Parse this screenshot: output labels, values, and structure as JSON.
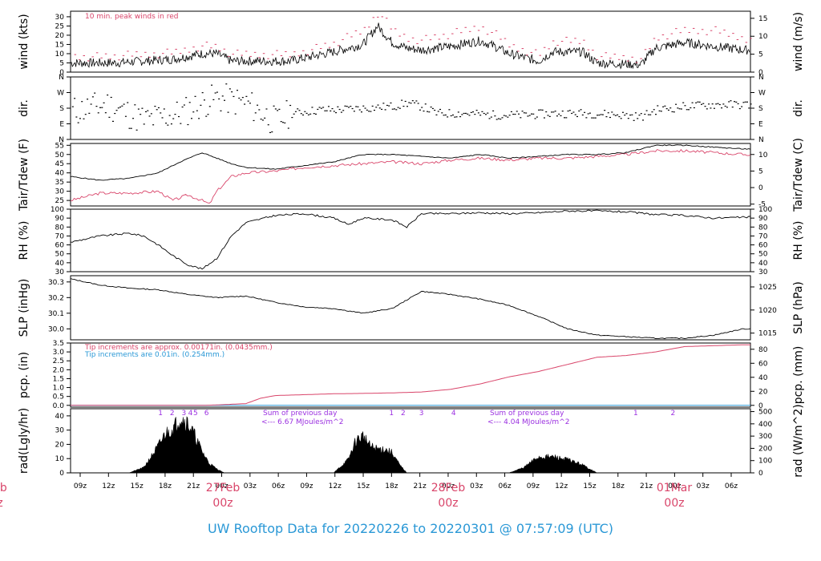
{
  "footer": "UW Rooftop Data for 20220226  to  20220301 @ 07:57:09  (UTC)",
  "time": {
    "hour_ticks": [
      "09z",
      "12z",
      "15z",
      "18z",
      "21z",
      "00z",
      "03z",
      "06z",
      "09z",
      "12z",
      "15z",
      "18z",
      "21z",
      "00z",
      "03z",
      "06z",
      "09z",
      "12z",
      "15z",
      "18z",
      "21z",
      "00z",
      "03z",
      "06z"
    ],
    "day_labels": [
      {
        "date": "eb",
        "hour": "z"
      },
      {
        "date": "27Feb",
        "hour": "00z"
      },
      {
        "date": "28Feb",
        "hour": "00z"
      },
      {
        "date": "01Mar",
        "hour": "00z"
      }
    ]
  },
  "panels": {
    "wind": {
      "ylabel": "wind (kts)",
      "ylabel_right": "wind (m/s)",
      "left_ticks": [
        "0",
        "5",
        "10",
        "15",
        "20",
        "25",
        "30"
      ],
      "right_ticks": [
        "0",
        "5",
        "10",
        "15"
      ],
      "note": "10 min. peak winds in red"
    },
    "dir": {
      "ylabel": "dir.",
      "ylabel_right": "dir.",
      "ticks": [
        "N",
        "E",
        "S",
        "W",
        "N"
      ]
    },
    "temp": {
      "ylabel": "Tair/Tdew (F)",
      "ylabel_right": "Tair/Tdew (C)",
      "left_ticks": [
        "25",
        "30",
        "35",
        "40",
        "45",
        "50",
        "55"
      ],
      "right_ticks": [
        "-5",
        "0",
        "5",
        "10"
      ]
    },
    "rh": {
      "ylabel": "RH (%)",
      "ylabel_right": "RH (%)",
      "ticks": [
        "30",
        "40",
        "50",
        "60",
        "70",
        "80",
        "90",
        "100"
      ]
    },
    "slp": {
      "ylabel": "SLP (inHg)",
      "ylabel_right": "SLP (hPa)",
      "left_ticks": [
        "30.0",
        "30.1",
        "30.2",
        "30.3"
      ],
      "right_ticks": [
        "1015",
        "1020",
        "1025"
      ]
    },
    "pcp": {
      "ylabel": "pcp. (in)",
      "ylabel_right": "pcp. (mm)",
      "left_ticks": [
        "0.0",
        "0.5",
        "1.0",
        "1.5",
        "2.0",
        "2.5",
        "3.0",
        "3.5"
      ],
      "right_ticks": [
        "0",
        "20",
        "40",
        "60",
        "80"
      ],
      "note1": "Tip increments are approx. 0.00171in. (0.0435mm.)",
      "note2": "Tip increments are 0.01in. (0.254mm.)"
    },
    "rad": {
      "ylabel": "rad(Lgly/hr)",
      "ylabel_right": "rad (W/m^2)",
      "left_ticks": [
        "0",
        "10",
        "20",
        "30",
        "40"
      ],
      "right_ticks": [
        "0",
        "100",
        "200",
        "300",
        "400",
        "500"
      ],
      "day1_numbers": [
        "1",
        "2",
        "3",
        "4",
        "5",
        "6"
      ],
      "day2_numbers": [
        "1",
        "2",
        "3",
        "4"
      ],
      "day3_numbers": [
        "1",
        "2"
      ],
      "sum1_title": "Sum of previous day",
      "sum1_value": "<--- 6.67 MJoules/m^2",
      "sum2_title": "Sum of previous day",
      "sum2_value": "<--- 4.04 MJoules/m^2"
    }
  },
  "colors": {
    "main": "#000000",
    "peak": "#d9456a",
    "tip2": "#2a98d6",
    "footer": "#2a98d6",
    "rad_text": "#9b30e0"
  },
  "chart_data": [
    {
      "type": "line",
      "title": "",
      "ylabel": "wind (kts)",
      "ylim": [
        0,
        33
      ],
      "x_unit": "hours since 20220226 06z",
      "series": [
        {
          "name": "wind",
          "x": [
            0,
            6,
            10,
            14,
            18,
            20,
            22,
            26,
            30,
            36,
            40,
            42,
            44,
            46,
            48,
            52,
            56,
            58,
            60,
            64,
            66,
            70,
            72,
            78,
            80,
            84,
            88,
            92
          ],
          "values": [
            5,
            5,
            6,
            7,
            10,
            10,
            6,
            6,
            6,
            11,
            15,
            25,
            16,
            13,
            12,
            14,
            17,
            14,
            10,
            6,
            11,
            11,
            5,
            4,
            13,
            16,
            14,
            12
          ]
        },
        {
          "name": "10 min. peak",
          "x": [
            0,
            6,
            10,
            14,
            18,
            20,
            22,
            26,
            30,
            36,
            40,
            42,
            44,
            46,
            48,
            52,
            56,
            58,
            60,
            64,
            66,
            70,
            72,
            78,
            80,
            84,
            88,
            92
          ],
          "values": [
            8,
            8,
            9,
            10,
            14,
            13,
            9,
            9,
            9,
            15,
            22,
            32,
            22,
            18,
            17,
            20,
            24,
            20,
            14,
            9,
            16,
            16,
            8,
            7,
            18,
            22,
            22,
            18
          ]
        }
      ]
    },
    {
      "type": "scatter",
      "title": "",
      "ylabel": "dir. (deg)",
      "ylim": [
        0,
        360
      ],
      "x_unit": "hours since 20220226 06z",
      "series": [
        {
          "name": "dir",
          "x": [
            0,
            5,
            10,
            15,
            18,
            20,
            24,
            28,
            30,
            34,
            36,
            40,
            44,
            46,
            48,
            50,
            54,
            58,
            62,
            66,
            70,
            74,
            78,
            80,
            84,
            88,
            92
          ],
          "values": [
            160,
            200,
            110,
            150,
            210,
            240,
            210,
            100,
            150,
            170,
            170,
            180,
            190,
            210,
            190,
            150,
            150,
            140,
            140,
            150,
            150,
            145,
            130,
            170,
            190,
            200,
            200
          ]
        }
      ]
    },
    {
      "type": "line",
      "title": "",
      "ylabel": "Tair/Tdew (F)",
      "ylim": [
        22,
        56
      ],
      "x_unit": "hours since 20220226 06z",
      "series": [
        {
          "name": "Tair",
          "x": [
            0,
            4,
            8,
            12,
            15,
            18,
            20,
            22,
            24,
            28,
            32,
            36,
            40,
            44,
            48,
            52,
            56,
            60,
            64,
            68,
            72,
            76,
            80,
            84,
            88,
            92
          ],
          "values": [
            38,
            36,
            37,
            40,
            46,
            51,
            48,
            45,
            43,
            42,
            44,
            46,
            50,
            50,
            49,
            48,
            50,
            48,
            49,
            50,
            50,
            51,
            55,
            55,
            54,
            53
          ]
        },
        {
          "name": "Tdew",
          "x": [
            0,
            4,
            8,
            12,
            14,
            16,
            18,
            19,
            20,
            22,
            24,
            28,
            32,
            36,
            40,
            44,
            48,
            52,
            56,
            60,
            64,
            68,
            72,
            76,
            80,
            84,
            88,
            92
          ],
          "values": [
            25,
            29,
            29,
            30,
            25,
            28,
            25,
            23,
            30,
            38,
            40,
            41,
            43,
            44,
            45,
            46,
            45,
            47,
            48,
            47,
            48,
            48,
            49,
            50,
            52,
            52,
            51,
            50
          ]
        }
      ]
    },
    {
      "type": "line",
      "title": "",
      "ylabel": "RH (%)",
      "ylim": [
        30,
        100
      ],
      "x_unit": "hours since 20220226 06z",
      "series": [
        {
          "name": "RH",
          "x": [
            0,
            4,
            8,
            10,
            12,
            14,
            16,
            18,
            20,
            22,
            24,
            28,
            32,
            36,
            38,
            40,
            44,
            46,
            48,
            52,
            56,
            60,
            64,
            68,
            72,
            76,
            80,
            84,
            88,
            92
          ],
          "values": [
            63,
            70,
            73,
            70,
            60,
            48,
            38,
            33,
            45,
            70,
            85,
            93,
            95,
            90,
            83,
            90,
            88,
            80,
            95,
            95,
            96,
            95,
            96,
            98,
            98,
            97,
            94,
            93,
            90,
            91
          ]
        }
      ]
    },
    {
      "type": "line",
      "title": "",
      "ylabel": "SLP (inHg)",
      "ylim": [
        29.93,
        30.34
      ],
      "x_unit": "hours since 20220226 06z",
      "series": [
        {
          "name": "SLP",
          "x": [
            0,
            4,
            8,
            12,
            16,
            20,
            24,
            28,
            32,
            36,
            40,
            44,
            48,
            52,
            56,
            60,
            64,
            68,
            72,
            76,
            80,
            84,
            88,
            92
          ],
          "values": [
            30.32,
            30.28,
            30.26,
            30.25,
            30.22,
            30.2,
            30.21,
            30.17,
            30.14,
            30.13,
            30.1,
            30.13,
            30.24,
            30.22,
            30.19,
            30.15,
            30.08,
            30.0,
            29.96,
            29.95,
            29.94,
            29.94,
            29.96,
            30.0
          ]
        }
      ]
    },
    {
      "type": "line",
      "title": "",
      "ylabel": "pcp. (in)",
      "ylim": [
        -0.1,
        3.5
      ],
      "x_unit": "hours since 20220226 06z",
      "series": [
        {
          "name": "pcp (approx tips)",
          "x": [
            0,
            12,
            18,
            20,
            24,
            26,
            28,
            32,
            36,
            40,
            44,
            48,
            52,
            56,
            60,
            64,
            68,
            72,
            76,
            80,
            84,
            88,
            92
          ],
          "values": [
            0,
            0,
            0,
            0.02,
            0.1,
            0.4,
            0.55,
            0.6,
            0.65,
            0.67,
            0.7,
            0.75,
            0.9,
            1.2,
            1.6,
            1.9,
            2.3,
            2.7,
            2.8,
            3.0,
            3.3,
            3.35,
            3.4
          ]
        },
        {
          "name": "pcp (0.01in tips)",
          "x": [
            0,
            92
          ],
          "values": [
            0,
            0
          ]
        }
      ]
    },
    {
      "type": "area",
      "title": "",
      "ylabel": "rad(Lgly/hr)",
      "ylim": [
        0,
        45
      ],
      "x_unit": "hours since 20220226 06z",
      "series": [
        {
          "name": "rad",
          "x": [
            8,
            10,
            12,
            13,
            14,
            15,
            16,
            17,
            18,
            19,
            20,
            21,
            22,
            36,
            38,
            39,
            40,
            41,
            42,
            43,
            44,
            45,
            46,
            60,
            62,
            64,
            66,
            68,
            69,
            70,
            71,
            72
          ],
          "values": [
            0,
            4,
            20,
            30,
            33,
            42,
            38,
            28,
            16,
            7,
            3,
            0,
            0,
            0,
            10,
            24,
            28,
            20,
            18,
            18,
            15,
            6,
            0,
            0,
            4,
            12,
            12,
            10,
            8,
            6,
            3,
            0
          ]
        }
      ]
    }
  ]
}
